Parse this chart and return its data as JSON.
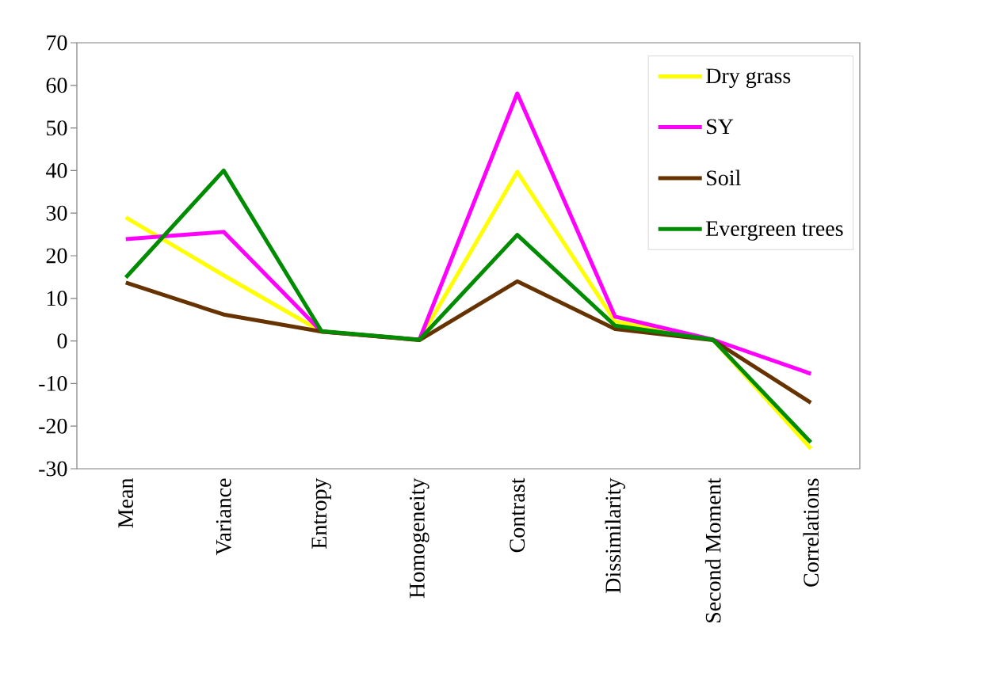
{
  "chart_data": {
    "type": "line",
    "categories": [
      "Mean",
      "Variance",
      "Entropy",
      "Homogeneity",
      "Contrast",
      "Dissimilarity",
      "Second Moment",
      "Correlations"
    ],
    "series": [
      {
        "name": "Dry grass",
        "color": "#ffff00",
        "values": [
          29.0,
          15.4,
          2.2,
          0.3,
          39.7,
          4.6,
          0.3,
          -25.3
        ]
      },
      {
        "name": "SY",
        "color": "#ff00ff",
        "values": [
          23.9,
          25.6,
          2.2,
          0.3,
          58.1,
          5.7,
          0.3,
          -7.7
        ]
      },
      {
        "name": "Soil",
        "color": "#663300",
        "values": [
          13.7,
          6.2,
          2.2,
          0.2,
          14.0,
          2.8,
          0.2,
          -14.5
        ]
      },
      {
        "name": "Evergreen trees",
        "color": "#008c00",
        "values": [
          14.9,
          40.0,
          2.3,
          0.3,
          24.9,
          3.6,
          0.3,
          -23.8
        ]
      }
    ],
    "ylim": [
      -30,
      70
    ],
    "yticks": [
      -30,
      -20,
      -10,
      0,
      10,
      20,
      30,
      40,
      50,
      60,
      70
    ],
    "legend": "top right",
    "marker": "none",
    "line_style": "solid",
    "grid": false
  }
}
